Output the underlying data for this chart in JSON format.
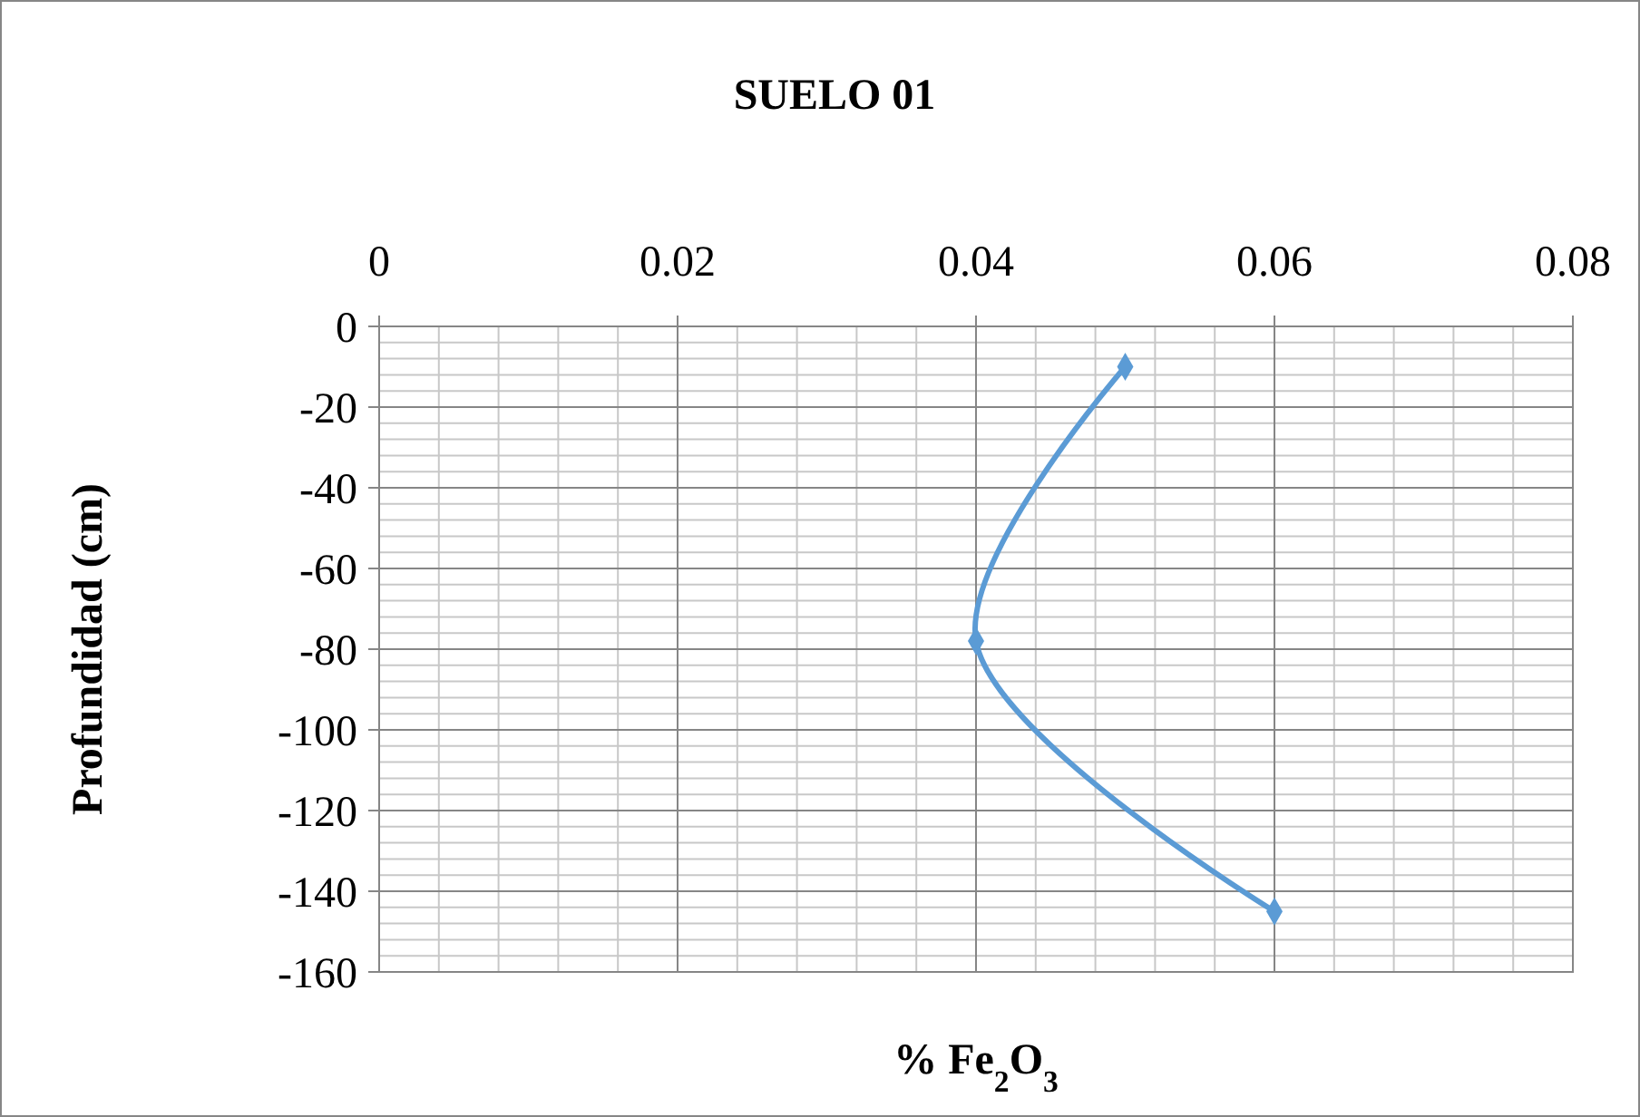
{
  "chart_data": {
    "type": "line",
    "title": "SUELO 01",
    "xlabel": "% Fe$_{2}$O$_{3}$",
    "ylabel": "Profundidad (cm)",
    "x": [
      0.05,
      0.04,
      0.06
    ],
    "series": [
      {
        "color": "#5b9bd5",
        "values": [
          -10,
          -78,
          -145
        ]
      }
    ],
    "xlim": [
      0,
      0.08
    ],
    "xticks": [
      0,
      0.02,
      0.04,
      0.06,
      0.08
    ],
    "ylim": [
      -160,
      0
    ],
    "yticks": [
      0,
      -20,
      -40,
      -60,
      -80,
      -100,
      -120,
      -140,
      -160
    ],
    "grid": true,
    "marker": "diamond",
    "line_style": "solid"
  }
}
